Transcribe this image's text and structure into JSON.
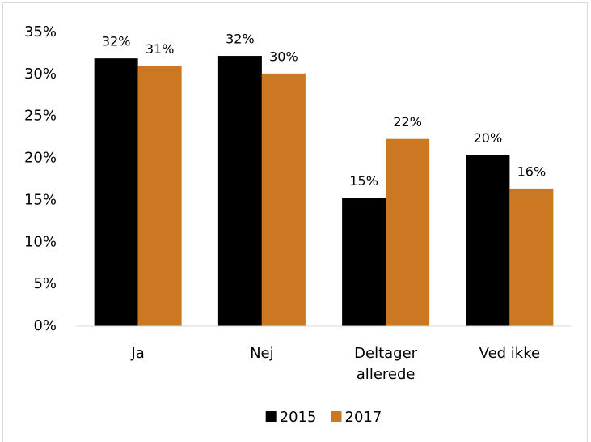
{
  "chart_data": {
    "type": "bar",
    "categories": [
      "Ja",
      "Nej",
      "Deltager allerede",
      "Ved ikke"
    ],
    "series": [
      {
        "name": "2015",
        "color": "#000000",
        "values": [
          31.9,
          32.2,
          15.3,
          20.4
        ],
        "value_labels": [
          "32%",
          "32%",
          "15%",
          "20%"
        ]
      },
      {
        "name": "2017",
        "color": "#cc7722",
        "values": [
          31.0,
          30.1,
          22.3,
          16.4
        ],
        "value_labels": [
          "31%",
          "30%",
          "22%",
          "16%"
        ]
      }
    ],
    "ylim": [
      0,
      35
    ],
    "yticks": [
      {
        "value": 0,
        "label": "0%"
      },
      {
        "value": 5,
        "label": "5%"
      },
      {
        "value": 10,
        "label": "10%"
      },
      {
        "value": 15,
        "label": "15%"
      },
      {
        "value": 20,
        "label": "20%"
      },
      {
        "value": 25,
        "label": "25%"
      },
      {
        "value": 30,
        "label": "30%"
      },
      {
        "value": 35,
        "label": "35%"
      }
    ],
    "grid": false,
    "legend": "bottom"
  }
}
